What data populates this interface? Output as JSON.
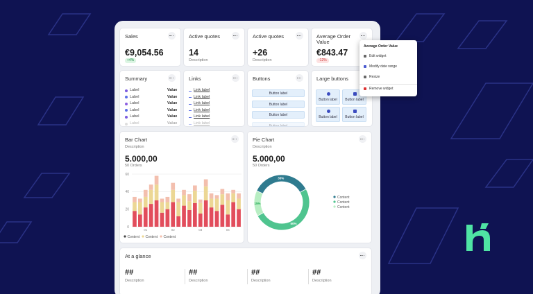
{
  "widgets": [
    {
      "title": "Sales",
      "value": "€9,054.56",
      "badge": "+4%"
    },
    {
      "title": "Active quotes",
      "value": "14",
      "description": "Description"
    },
    {
      "title": "Active quotes",
      "value": "+26",
      "description": "Description"
    },
    {
      "title": "Average Order Value",
      "value": "€843.47",
      "badge": "-12%"
    }
  ],
  "summary": {
    "title": "Summary",
    "rows": [
      [
        "Label",
        "Value"
      ],
      [
        "Label",
        "Value"
      ],
      [
        "Label",
        "Value"
      ],
      [
        "Label",
        "Value"
      ],
      [
        "Label",
        "Value"
      ],
      [
        "Label",
        "Value"
      ]
    ]
  },
  "links": {
    "title": "Links",
    "items": [
      "Link label",
      "Link label",
      "Link label",
      "Link label",
      "Link label",
      "Link label"
    ]
  },
  "buttons": {
    "title": "Buttons",
    "items": [
      "Button label",
      "Button label",
      "Button label",
      "Button label"
    ]
  },
  "large_buttons": {
    "title": "Large buttons",
    "items": [
      "Button label",
      "Button label",
      "Button label",
      "Button label"
    ]
  },
  "menu": {
    "title": "Average Order Value",
    "items": [
      "Edit widget",
      "Modify date range",
      "Resize",
      "Remove widget"
    ]
  },
  "chart_data": [
    {
      "type": "bar",
      "title": "Bar Chart",
      "description": "Description",
      "value": "5.000,00",
      "subtitle": "50 Orders",
      "categories": [
        null,
        null,
        "01",
        null,
        null,
        null,
        null,
        "02",
        null,
        null,
        null,
        null,
        "03",
        null,
        null,
        null,
        null,
        "04",
        null,
        null
      ],
      "series": [
        {
          "name": "Content",
          "color": "#e24d5c",
          "values": [
            18,
            14,
            22,
            26,
            30,
            16,
            20,
            28,
            12,
            24,
            19,
            27,
            15,
            30,
            22,
            18,
            25,
            14,
            28,
            20
          ]
        },
        {
          "name": "Content",
          "color": "#ecd794",
          "values": [
            10,
            14,
            12,
            16,
            18,
            12,
            8,
            14,
            16,
            12,
            10,
            14,
            12,
            16,
            10,
            14,
            12,
            16,
            10,
            12
          ]
        },
        {
          "name": "Content",
          "color": "#f3bfae",
          "values": [
            6,
            4,
            8,
            6,
            10,
            4,
            6,
            8,
            4,
            6,
            8,
            6,
            4,
            8,
            6,
            4,
            6,
            8,
            4,
            6
          ]
        }
      ],
      "ylim": [
        0,
        60
      ],
      "yticks": [
        0,
        20,
        40,
        60
      ],
      "grid": true,
      "stacked": true
    },
    {
      "type": "pie",
      "title": "Pie Chart",
      "description": "Description",
      "value": "5.000,00",
      "subtitle": "50 Orders",
      "categories": [
        "Content",
        "Content",
        "Content"
      ],
      "values": [
        35,
        50,
        15
      ],
      "value_labels": [
        "35%",
        "50%",
        "15%"
      ],
      "colors": [
        "#2f7b8f",
        "#4fc48f",
        "#b8eec3"
      ],
      "donut": true
    }
  ],
  "glance": {
    "title": "At a glance",
    "items": [
      {
        "value": "##",
        "description": "Description"
      },
      {
        "value": "##",
        "description": "Description"
      },
      {
        "value": "##",
        "description": "Description"
      },
      {
        "value": "##",
        "description": "Description"
      }
    ]
  }
}
